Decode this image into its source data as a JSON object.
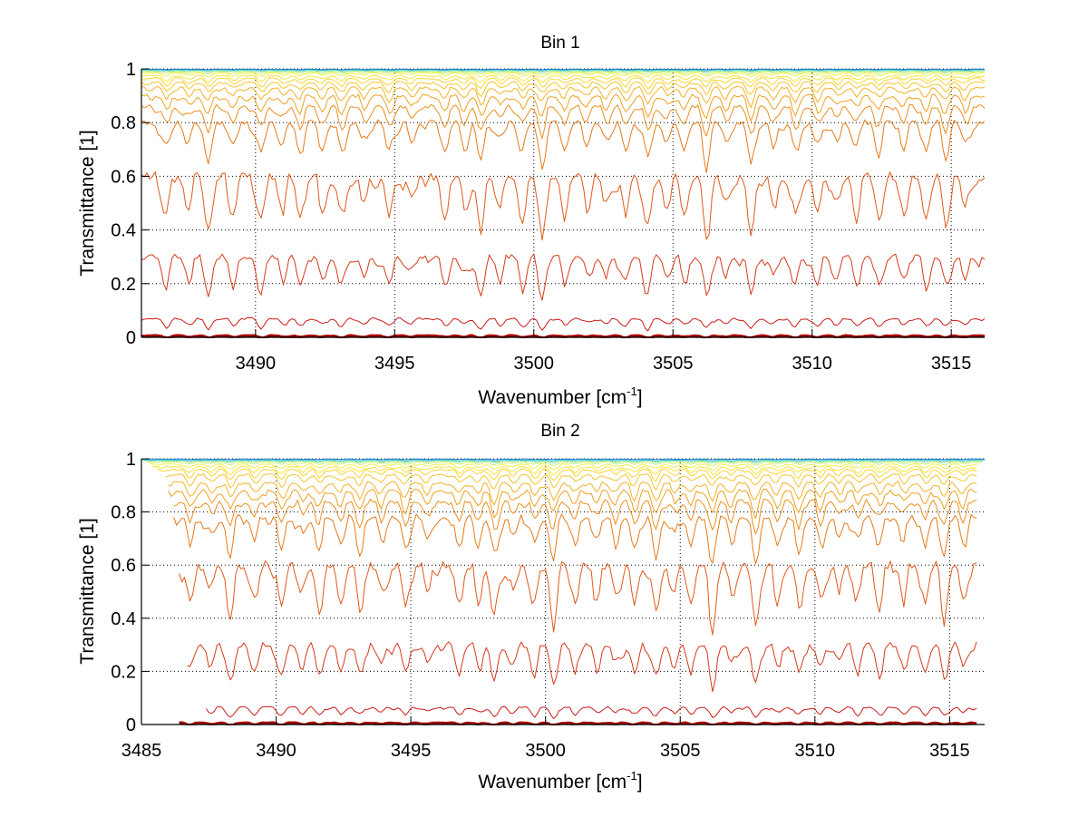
{
  "figure": {
    "background": "#ffffff"
  },
  "chart_data": [
    {
      "type": "line",
      "title": "Bin 1",
      "xlabel": "Wavenumber [cm",
      "xlabel_sup": "-1",
      "xlabel_end": "]",
      "ylabel": "Transmittance [1]",
      "xlim": [
        3485.9,
        3516.2
      ],
      "ylim": [
        0,
        1
      ],
      "xticks": [
        3490,
        3495,
        3500,
        3505,
        3510,
        3515
      ],
      "xtick_labels": [
        "3490",
        "3495",
        "3500",
        "3505",
        "3510",
        "3515"
      ],
      "yticks": [
        0,
        0.2,
        0.4,
        0.6,
        0.8,
        1
      ],
      "ytick_labels": [
        "0",
        "0.2",
        "0.4",
        "0.6",
        "0.8",
        "1"
      ],
      "grid": true,
      "x_start": 3485.9,
      "x_end": 3516.2,
      "series_baselines": [
        0.002,
        0.008,
        0.07,
        0.3,
        0.6,
        0.8,
        0.86,
        0.9,
        0.93,
        0.95,
        0.965,
        0.975,
        0.985,
        0.99,
        0.994,
        0.997,
        0.999
      ],
      "series_depths": [
        0.003,
        0.01,
        0.04,
        0.15,
        0.22,
        0.15,
        0.1,
        0.08,
        0.06,
        0.045,
        0.035,
        0.025,
        0.015,
        0.01,
        0.006,
        0.004,
        0.002
      ],
      "series_colors": [
        "#800000",
        "#aa0000",
        "#cc1a1a",
        "#d43a1a",
        "#de5a1a",
        "#e67a1a",
        "#eb8f1f",
        "#f0a020",
        "#f3b226",
        "#f6c42c",
        "#f8d532",
        "#f8e43c",
        "#eef04a",
        "#c6f06a",
        "#7fe0a0",
        "#3cc0d0",
        "#1a7ad0"
      ]
    },
    {
      "type": "line",
      "title": "Bin 2",
      "xlabel": "Wavenumber [cm",
      "xlabel_sup": "-1",
      "xlabel_end": "]",
      "ylabel": "Transmittance [1]",
      "xlim": [
        3485,
        3516.3
      ],
      "ylim": [
        0,
        1
      ],
      "xticks": [
        3485,
        3490,
        3495,
        3500,
        3505,
        3510,
        3515
      ],
      "xtick_labels": [
        "3485",
        "3490",
        "3495",
        "3500",
        "3505",
        "3510",
        "3515"
      ],
      "yticks": [
        0,
        0.2,
        0.4,
        0.6,
        0.8,
        1
      ],
      "ytick_labels": [
        "0",
        "0.2",
        "0.4",
        "0.6",
        "0.8",
        "1"
      ],
      "grid": true,
      "series_baselines": [
        0.002,
        0.008,
        0.065,
        0.3,
        0.6,
        0.78,
        0.84,
        0.88,
        0.91,
        0.94,
        0.96,
        0.97,
        0.98,
        0.988,
        0.993,
        0.996,
        0.999
      ],
      "series_depths": [
        0.003,
        0.01,
        0.04,
        0.15,
        0.22,
        0.16,
        0.11,
        0.09,
        0.07,
        0.05,
        0.04,
        0.03,
        0.02,
        0.012,
        0.008,
        0.005,
        0.002
      ],
      "series_xstart": [
        3486.4,
        3486.4,
        3487.4,
        3486.7,
        3486.4,
        3486.2,
        3486.2,
        3486.0,
        3486.0,
        3485.9,
        3485.6,
        3485.4,
        3485.3,
        3485.2,
        3485.1,
        3485.0,
        3485.0
      ],
      "series_xend": [
        3516.0,
        3516.0,
        3516.0,
        3516.0,
        3516.0,
        3516.0,
        3516.0,
        3516.0,
        3516.0,
        3516.0,
        3516.0,
        3516.0,
        3516.1,
        3516.2,
        3516.2,
        3516.3,
        3516.3
      ],
      "series_colors": [
        "#800000",
        "#aa0000",
        "#cc1a1a",
        "#d43a1a",
        "#de5a1a",
        "#e67a1a",
        "#eb8f1f",
        "#f0a020",
        "#f3b226",
        "#f6c42c",
        "#f8d532",
        "#f8e43c",
        "#eef04a",
        "#c6f06a",
        "#7fe0a0",
        "#3cc0d0",
        "#1a7ad0"
      ]
    }
  ],
  "absorption_lines": [
    3486.8,
    3487.6,
    3488.3,
    3489.2,
    3490.2,
    3491.0,
    3491.6,
    3492.4,
    3493.1,
    3493.9,
    3494.8,
    3495.6,
    3496.8,
    3497.5,
    3498.1,
    3498.8,
    3499.6,
    3500.3,
    3501.1,
    3501.9,
    3502.6,
    3503.3,
    3504.1,
    3504.8,
    3505.4,
    3506.2,
    3506.9,
    3507.8,
    3508.6,
    3509.4,
    3510.2,
    3510.9,
    3511.6,
    3512.4,
    3513.3,
    3514.1,
    3514.8,
    3515.5
  ],
  "absorption_strengths": [
    0.7,
    0.5,
    0.9,
    0.6,
    0.8,
    0.5,
    0.7,
    0.6,
    0.8,
    0.55,
    0.75,
    0.5,
    0.65,
    0.6,
    1.0,
    0.5,
    0.7,
    1.0,
    0.6,
    0.5,
    0.55,
    0.75,
    0.95,
    0.5,
    0.6,
    1.0,
    0.55,
    1.0,
    0.6,
    0.8,
    0.7,
    0.5,
    0.6,
    0.7,
    0.55,
    0.65,
    0.8,
    0.6
  ]
}
